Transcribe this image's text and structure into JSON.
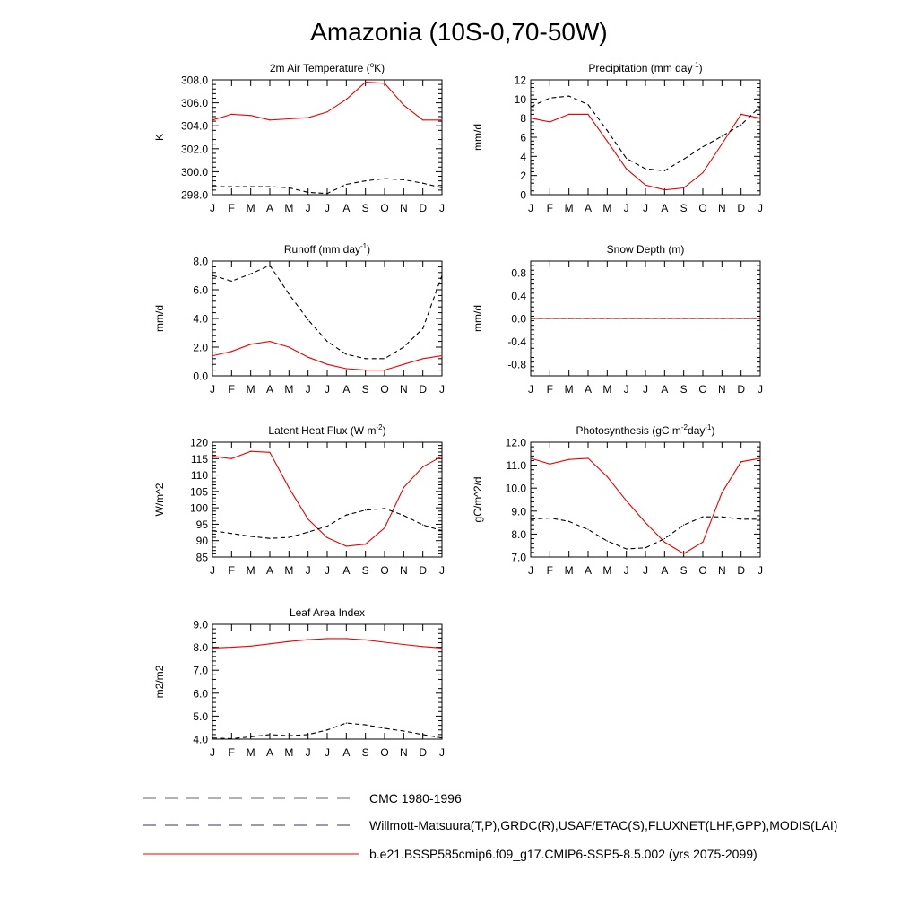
{
  "title": "Amazonia (10S-0,70-50W)",
  "months": [
    "J",
    "F",
    "M",
    "A",
    "M",
    "J",
    "J",
    "A",
    "S",
    "O",
    "N",
    "D",
    "J"
  ],
  "colors": {
    "model": "#ee0000",
    "obs": "#000000",
    "obs_alt": "#2233aa"
  },
  "legend": [
    {
      "label": "CMC 1980-1996",
      "style": "dashed",
      "color": "#666666"
    },
    {
      "label": "Willmott-Matsuura(T,P),GRDC(R),USAF/ETAC(S),FLUXNET(LHF,GPP),MODIS(LAI)",
      "style": "dashed-alt",
      "color": "#333366"
    },
    {
      "label": "b.e21.BSSP585cmip6.f09_g17.CMIP6-SSP5-8.5.002 (yrs 2075-2099)",
      "style": "solid",
      "color": "#ee0000"
    }
  ],
  "chart_data": [
    {
      "id": "tsa",
      "type": "line",
      "title_parts": [
        {
          "t": "2m Air Temperature ("
        },
        {
          "t": "o",
          "sup": true
        },
        {
          "t": "K)"
        }
      ],
      "ylabel": "K",
      "ylim": [
        298,
        308
      ],
      "yticks": [
        298,
        300,
        302,
        304,
        306,
        308
      ],
      "ytick_labels": [
        "298.0",
        "300.0",
        "302.0",
        "304.0",
        "306.0",
        "308.0"
      ],
      "series": [
        {
          "name": "model",
          "style": "solid",
          "values": [
            304.5,
            305.0,
            304.9,
            304.5,
            304.6,
            304.7,
            305.2,
            306.3,
            307.8,
            307.7,
            305.8,
            304.5,
            304.5
          ]
        },
        {
          "name": "obs",
          "style": "dashed",
          "values": [
            298.7,
            298.7,
            298.7,
            298.7,
            298.6,
            298.2,
            298.1,
            298.9,
            299.2,
            299.4,
            299.3,
            299.0,
            298.6
          ]
        }
      ]
    },
    {
      "id": "prect",
      "type": "line",
      "title_parts": [
        {
          "t": "Precipitation (mm day"
        },
        {
          "t": "-1",
          "sup": true
        },
        {
          "t": ")"
        }
      ],
      "ylabel": "mm/d",
      "ylim": [
        0,
        12
      ],
      "yticks": [
        0,
        2,
        4,
        6,
        8,
        10,
        12
      ],
      "ytick_labels": [
        "0",
        "2",
        "4",
        "6",
        "8",
        "10",
        "12"
      ],
      "series": [
        {
          "name": "model",
          "style": "solid",
          "values": [
            8.0,
            7.6,
            8.4,
            8.4,
            5.6,
            2.7,
            1.0,
            0.5,
            0.7,
            2.3,
            5.3,
            8.4,
            8.0
          ]
        },
        {
          "name": "obs",
          "style": "dashed",
          "values": [
            9.2,
            10.1,
            10.3,
            9.4,
            6.7,
            3.8,
            2.7,
            2.5,
            3.7,
            5.0,
            6.1,
            7.3,
            9.2
          ]
        }
      ]
    },
    {
      "id": "runoff",
      "type": "line",
      "title_parts": [
        {
          "t": "Runoff (mm day"
        },
        {
          "t": "-1",
          "sup": true
        },
        {
          "t": ")"
        }
      ],
      "ylabel": "mm/d",
      "ylim": [
        0,
        8
      ],
      "yticks": [
        0,
        2,
        4,
        6,
        8
      ],
      "ytick_labels": [
        "0.0",
        "2.0",
        "4.0",
        "6.0",
        "8.0"
      ],
      "series": [
        {
          "name": "model",
          "style": "solid",
          "values": [
            1.4,
            1.7,
            2.2,
            2.4,
            2.0,
            1.3,
            0.8,
            0.5,
            0.4,
            0.4,
            0.8,
            1.2,
            1.4
          ]
        },
        {
          "name": "obs",
          "style": "dashed",
          "values": [
            7.0,
            6.6,
            7.1,
            7.7,
            5.7,
            3.9,
            2.4,
            1.5,
            1.2,
            1.2,
            2.0,
            3.3,
            7.0
          ]
        }
      ]
    },
    {
      "id": "snowdp",
      "type": "line",
      "title_parts": [
        {
          "t": "Snow Depth (m)"
        }
      ],
      "ylabel": "mm/d",
      "ylim": [
        -1,
        1
      ],
      "yticks": [
        -0.8,
        -0.4,
        0,
        0.4,
        0.8
      ],
      "ytick_labels": [
        "-0.8",
        "-0.4",
        "0.0",
        "0.4",
        "0.8"
      ],
      "series": [
        {
          "name": "model",
          "style": "solid",
          "values": [
            0,
            0,
            0,
            0,
            0,
            0,
            0,
            0,
            0,
            0,
            0,
            0,
            0
          ]
        },
        {
          "name": "obs",
          "style": "dashed",
          "values": [
            0,
            0,
            0,
            0,
            0,
            0,
            0,
            0,
            0,
            0,
            0,
            0,
            0
          ]
        }
      ]
    },
    {
      "id": "lhf",
      "type": "line",
      "title_parts": [
        {
          "t": "Latent Heat Flux (W m"
        },
        {
          "t": "-2",
          "sup": true
        },
        {
          "t": ")"
        }
      ],
      "ylabel": "W/m^2",
      "ylim": [
        85,
        120
      ],
      "yticks": [
        85,
        90,
        95,
        100,
        105,
        110,
        115,
        120
      ],
      "ytick_labels": [
        "85",
        "90",
        "95",
        "100",
        "105",
        "110",
        "115",
        "120"
      ],
      "series": [
        {
          "name": "model",
          "style": "solid",
          "values": [
            115.7,
            115.0,
            117.2,
            116.9,
            106.1,
            96.5,
            90.9,
            88.3,
            88.9,
            93.9,
            106.2,
            112.5,
            115.7
          ]
        },
        {
          "name": "obs",
          "style": "dashed",
          "values": [
            93.0,
            92.2,
            91.3,
            90.7,
            91.0,
            92.6,
            94.4,
            97.8,
            99.3,
            99.8,
            97.7,
            94.8,
            93.0
          ]
        }
      ]
    },
    {
      "id": "gpp",
      "type": "line",
      "title_parts": [
        {
          "t": "Photosynthesis (gC m"
        },
        {
          "t": "-2",
          "sup": true
        },
        {
          "t": "day"
        },
        {
          "t": "-1",
          "sup": true
        },
        {
          "t": ")"
        }
      ],
      "ylabel": "gC/m^2/d",
      "ylim": [
        7,
        12
      ],
      "yticks": [
        7,
        8,
        9,
        10,
        11,
        12
      ],
      "ytick_labels": [
        "7.0",
        "8.0",
        "9.0",
        "10.0",
        "11.0",
        "12.0"
      ],
      "series": [
        {
          "name": "model",
          "style": "solid",
          "values": [
            11.3,
            11.05,
            11.25,
            11.3,
            10.5,
            9.45,
            8.5,
            7.65,
            7.15,
            7.65,
            9.8,
            11.15,
            11.3
          ]
        },
        {
          "name": "obs",
          "style": "dashed",
          "values": [
            8.65,
            8.7,
            8.55,
            8.2,
            7.7,
            7.35,
            7.4,
            7.8,
            8.4,
            8.75,
            8.75,
            8.65,
            8.65
          ]
        }
      ]
    },
    {
      "id": "lai",
      "type": "line",
      "title_parts": [
        {
          "t": "Leaf Area Index"
        }
      ],
      "ylabel": "m2/m2",
      "ylim": [
        4,
        9
      ],
      "yticks": [
        4,
        5,
        6,
        7,
        8,
        9
      ],
      "ytick_labels": [
        "4.0",
        "5.0",
        "6.0",
        "7.0",
        "8.0",
        "9.0"
      ],
      "series": [
        {
          "name": "model",
          "style": "solid",
          "values": [
            7.97,
            8.0,
            8.05,
            8.15,
            8.25,
            8.33,
            8.38,
            8.38,
            8.32,
            8.22,
            8.12,
            8.03,
            7.97
          ]
        },
        {
          "name": "obs",
          "style": "dashed",
          "values": [
            4.05,
            4.02,
            4.1,
            4.2,
            4.15,
            4.2,
            4.4,
            4.7,
            4.62,
            4.47,
            4.35,
            4.2,
            4.05
          ]
        }
      ]
    }
  ]
}
